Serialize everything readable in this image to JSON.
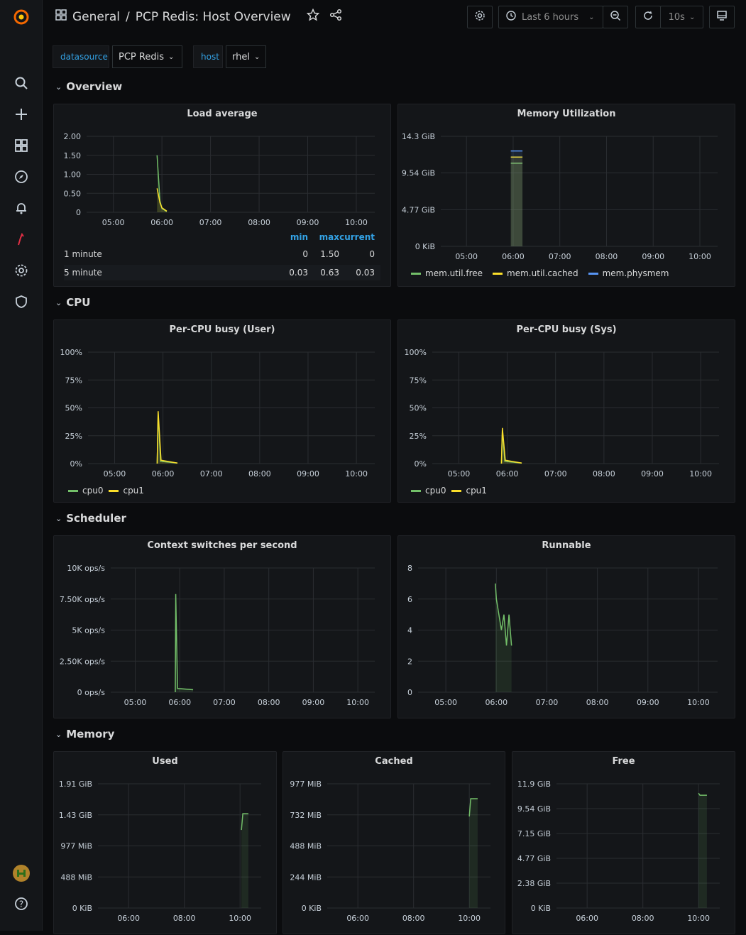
{
  "header": {
    "folder": "General",
    "separator": "/",
    "title": "PCP Redis: Host Overview",
    "time_range": "Last 6 hours",
    "refresh_interval": "10s"
  },
  "variables": [
    {
      "label": "datasource",
      "value": "PCP Redis"
    },
    {
      "label": "host",
      "value": "rhel"
    }
  ],
  "rows": [
    {
      "title": "Overview"
    },
    {
      "title": "CPU"
    },
    {
      "title": "Scheduler"
    },
    {
      "title": "Memory"
    }
  ],
  "panels": {
    "load": {
      "title": "Load average",
      "legend_headers": [
        "min",
        "max",
        "current"
      ],
      "legend": [
        {
          "name": "1 minute",
          "color": "#73bf69",
          "min": "0",
          "max": "1.50",
          "current": "0"
        },
        {
          "name": "5 minute",
          "color": "#fade2a",
          "min": "0.03",
          "max": "0.63",
          "current": "0.03"
        }
      ]
    },
    "memutil": {
      "title": "Memory Utilization",
      "legend": [
        {
          "name": "mem.util.free",
          "color": "#73bf69"
        },
        {
          "name": "mem.util.cached",
          "color": "#fade2a"
        },
        {
          "name": "mem.physmem",
          "color": "#5794f2"
        }
      ]
    },
    "cpu_user": {
      "title": "Per-CPU busy (User)",
      "legend": [
        {
          "name": "cpu0",
          "color": "#73bf69"
        },
        {
          "name": "cpu1",
          "color": "#fade2a"
        }
      ]
    },
    "cpu_sys": {
      "title": "Per-CPU busy (Sys)",
      "legend": [
        {
          "name": "cpu0",
          "color": "#73bf69"
        },
        {
          "name": "cpu1",
          "color": "#fade2a"
        }
      ]
    },
    "ctx": {
      "title": "Context switches per second"
    },
    "runnable": {
      "title": "Runnable"
    },
    "used": {
      "title": "Used"
    },
    "cached": {
      "title": "Cached"
    },
    "free": {
      "title": "Free"
    }
  },
  "chart_data": [
    {
      "id": "load",
      "type": "line",
      "title": "Load average",
      "x_ticks": [
        "05:00",
        "06:00",
        "07:00",
        "08:00",
        "09:00",
        "10:00"
      ],
      "y_ticks": [
        "2.00",
        "1.50",
        "1.00",
        "0.50",
        "0"
      ],
      "ylim": [
        0,
        2
      ],
      "series": [
        {
          "name": "1 minute",
          "color": "#73bf69",
          "points": [
            [
              5.9,
              1.5
            ],
            [
              5.93,
              0.9
            ],
            [
              5.96,
              0.3
            ],
            [
              6.0,
              0.1
            ],
            [
              6.1,
              0.02
            ]
          ]
        },
        {
          "name": "5 minute",
          "color": "#fade2a",
          "points": [
            [
              5.9,
              0.63
            ],
            [
              5.93,
              0.45
            ],
            [
              5.96,
              0.25
            ],
            [
              6.0,
              0.12
            ],
            [
              6.1,
              0.03
            ]
          ]
        }
      ]
    },
    {
      "id": "memutil",
      "type": "line",
      "title": "Memory Utilization",
      "x_ticks": [
        "05:00",
        "06:00",
        "07:00",
        "08:00",
        "09:00",
        "10:00"
      ],
      "y_ticks": [
        "14.3 GiB",
        "9.54 GiB",
        "4.77 GiB",
        "0 KiB"
      ],
      "ylim": [
        0,
        14.3
      ],
      "series": [
        {
          "name": "mem.util.free",
          "color": "#73bf69",
          "points": [
            [
              5.95,
              10.8
            ],
            [
              6.2,
              10.8
            ]
          ]
        },
        {
          "name": "mem.util.cached",
          "color": "#fade2a",
          "points": [
            [
              5.95,
              11.6
            ],
            [
              6.2,
              11.6
            ]
          ]
        },
        {
          "name": "mem.physmem",
          "color": "#5794f2",
          "points": [
            [
              5.95,
              12.4
            ],
            [
              6.2,
              12.4
            ]
          ]
        }
      ]
    },
    {
      "id": "cpu_user",
      "type": "line",
      "title": "Per-CPU busy (User)",
      "x_ticks": [
        "05:00",
        "06:00",
        "07:00",
        "08:00",
        "09:00",
        "10:00"
      ],
      "y_ticks": [
        "100%",
        "75%",
        "50%",
        "25%",
        "0%"
      ],
      "ylim": [
        0,
        100
      ],
      "series": [
        {
          "name": "cpu0",
          "color": "#73bf69",
          "points": [
            [
              5.88,
              0
            ],
            [
              5.9,
              45
            ],
            [
              5.95,
              2
            ],
            [
              6.3,
              0.5
            ]
          ]
        },
        {
          "name": "cpu1",
          "color": "#fade2a",
          "points": [
            [
              5.88,
              0
            ],
            [
              5.9,
              47
            ],
            [
              5.96,
              3
            ],
            [
              6.3,
              0.5
            ]
          ]
        }
      ]
    },
    {
      "id": "cpu_sys",
      "type": "line",
      "title": "Per-CPU busy (Sys)",
      "x_ticks": [
        "05:00",
        "06:00",
        "07:00",
        "08:00",
        "09:00",
        "10:00"
      ],
      "y_ticks": [
        "100%",
        "75%",
        "50%",
        "25%",
        "0%"
      ],
      "ylim": [
        0,
        100
      ],
      "series": [
        {
          "name": "cpu0",
          "color": "#73bf69",
          "points": [
            [
              5.88,
              0
            ],
            [
              5.9,
              30
            ],
            [
              5.95,
              2
            ],
            [
              6.3,
              0.5
            ]
          ]
        },
        {
          "name": "cpu1",
          "color": "#fade2a",
          "points": [
            [
              5.88,
              0
            ],
            [
              5.9,
              32
            ],
            [
              5.96,
              3
            ],
            [
              6.3,
              0.5
            ]
          ]
        }
      ]
    },
    {
      "id": "ctx",
      "type": "line",
      "title": "Context switches per second",
      "x_ticks": [
        "05:00",
        "06:00",
        "07:00",
        "08:00",
        "09:00",
        "10:00"
      ],
      "y_ticks": [
        "10K ops/s",
        "7.50K ops/s",
        "5K ops/s",
        "2.50K ops/s",
        "0 ops/s"
      ],
      "ylim": [
        0,
        10000
      ],
      "series": [
        {
          "name": "",
          "color": "#73bf69",
          "points": [
            [
              5.9,
              0
            ],
            [
              5.91,
              7900
            ],
            [
              5.95,
              300
            ],
            [
              6.3,
              200
            ]
          ]
        }
      ]
    },
    {
      "id": "runnable",
      "type": "line",
      "title": "Runnable",
      "x_ticks": [
        "05:00",
        "06:00",
        "07:00",
        "08:00",
        "09:00",
        "10:00"
      ],
      "y_ticks": [
        "8",
        "6",
        "4",
        "2",
        "0"
      ],
      "ylim": [
        0,
        8
      ],
      "series": [
        {
          "name": "",
          "color": "#73bf69",
          "points": [
            [
              5.98,
              7
            ],
            [
              6.0,
              6
            ],
            [
              6.05,
              5
            ],
            [
              6.1,
              4
            ],
            [
              6.15,
              5
            ],
            [
              6.2,
              3
            ],
            [
              6.25,
              5
            ],
            [
              6.3,
              3
            ]
          ]
        }
      ]
    },
    {
      "id": "used",
      "type": "line",
      "title": "Used",
      "x_ticks": [
        "06:00",
        "08:00",
        "10:00"
      ],
      "y_ticks": [
        "1.91 GiB",
        "1.43 GiB",
        "977 MiB",
        "488 MiB",
        "0 KiB"
      ],
      "ylim": [
        0,
        1.91
      ],
      "series": [
        {
          "name": "",
          "color": "#73bf69",
          "points": [
            [
              10.05,
              1.2
            ],
            [
              10.1,
              1.45
            ],
            [
              10.3,
              1.45
            ]
          ]
        }
      ]
    },
    {
      "id": "cached",
      "type": "line",
      "title": "Cached",
      "x_ticks": [
        "06:00",
        "08:00",
        "10:00"
      ],
      "y_ticks": [
        "977 MiB",
        "732 MiB",
        "488 MiB",
        "244 MiB",
        "0 KiB"
      ],
      "ylim": [
        0,
        977
      ],
      "series": [
        {
          "name": "",
          "color": "#73bf69",
          "points": [
            [
              10.0,
              720
            ],
            [
              10.05,
              860
            ],
            [
              10.3,
              860
            ]
          ]
        }
      ]
    },
    {
      "id": "free",
      "type": "line",
      "title": "Free",
      "x_ticks": [
        "06:00",
        "08:00",
        "10:00"
      ],
      "y_ticks": [
        "11.9 GiB",
        "9.54 GiB",
        "7.15 GiB",
        "4.77 GiB",
        "2.38 GiB",
        "0 KiB"
      ],
      "ylim": [
        0,
        11.9
      ],
      "series": [
        {
          "name": "",
          "color": "#73bf69",
          "points": [
            [
              10.0,
              11.0
            ],
            [
              10.05,
              10.8
            ],
            [
              10.3,
              10.8
            ]
          ]
        }
      ]
    }
  ]
}
